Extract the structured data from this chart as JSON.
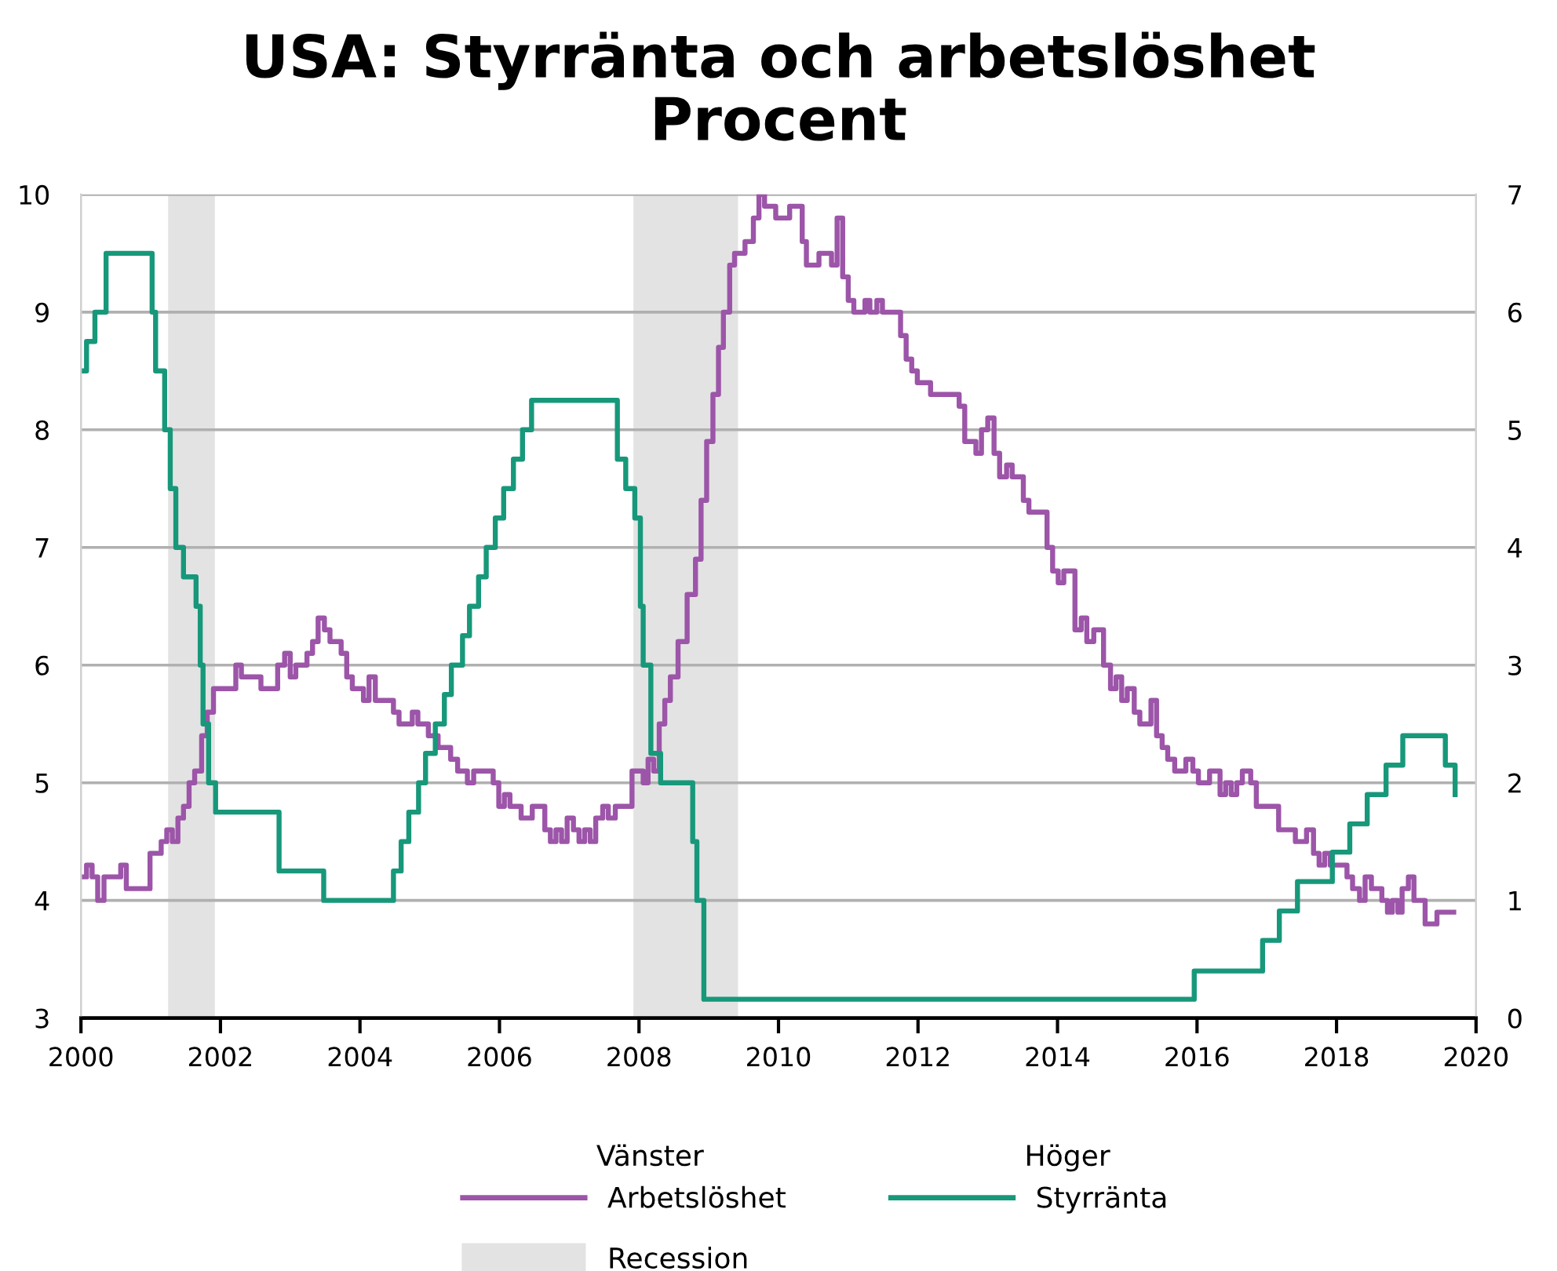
{
  "chart_data": {
    "type": "step",
    "title": "USA: Styrränta och arbetslöshet",
    "subtitle": "Procent",
    "xlim": [
      2000,
      2020
    ],
    "xticks": [
      2000,
      2002,
      2004,
      2006,
      2008,
      2010,
      2012,
      2014,
      2016,
      2018,
      2020
    ],
    "ylim": [
      3,
      10
    ],
    "yticks": [
      3,
      4,
      5,
      6,
      7,
      8,
      9,
      10
    ],
    "y2lim": [
      0,
      7
    ],
    "y2ticks": [
      0,
      1,
      2,
      3,
      4,
      5,
      6,
      7
    ],
    "grid": "y",
    "legend": "bottom",
    "annotations": [
      "Vänster",
      "Höger"
    ],
    "bands": [
      {
        "axis": "x",
        "from": 2001.25,
        "to": 2001.92,
        "label": "Recession",
        "color": "#e3e3e3"
      },
      {
        "axis": "x",
        "from": 2007.92,
        "to": 2009.42,
        "color": "#e3e3e3"
      }
    ],
    "series": [
      {
        "name": "Arbetslöshet",
        "color": "#9c55a8",
        "x": [
          2000.0,
          2000.08,
          2000.16,
          2000.24,
          2000.33,
          2000.57,
          2000.65,
          2000.99,
          2001.15,
          2001.23,
          2001.31,
          2001.39,
          2001.47,
          2001.55,
          2001.63,
          2001.73,
          2001.81,
          2001.9,
          2002.22,
          2002.3,
          2002.58,
          2002.82,
          2002.92,
          2003.0,
          2003.08,
          2003.24,
          2003.32,
          2003.4,
          2003.49,
          2003.57,
          2003.73,
          2003.81,
          2003.89,
          2004.05,
          2004.13,
          2004.22,
          2004.48,
          2004.56,
          2004.75,
          2004.83,
          2004.98,
          2005.12,
          2005.3,
          2005.4,
          2005.54,
          2005.63,
          2005.91,
          2005.99,
          2006.07,
          2006.15,
          2006.31,
          2006.47,
          2006.65,
          2006.73,
          2006.81,
          2006.89,
          2006.97,
          2007.06,
          2007.14,
          2007.22,
          2007.3,
          2007.38,
          2007.48,
          2007.56,
          2007.66,
          2007.9,
          2008.06,
          2008.13,
          2008.21,
          2008.29,
          2008.37,
          2008.45,
          2008.56,
          2008.69,
          2008.81,
          2008.89,
          2008.97,
          2009.06,
          2009.14,
          2009.21,
          2009.3,
          2009.37,
          2009.52,
          2009.64,
          2009.72,
          2009.8,
          2009.96,
          2010.16,
          2010.34,
          2010.4,
          2010.58,
          2010.76,
          2010.84,
          2010.92,
          2011.0,
          2011.08,
          2011.24,
          2011.31,
          2011.41,
          2011.49,
          2011.75,
          2011.83,
          2011.91,
          2011.99,
          2012.18,
          2012.59,
          2012.67,
          2012.83,
          2012.91,
          2013.0,
          2013.09,
          2013.17,
          2013.27,
          2013.35,
          2013.51,
          2013.59,
          2013.85,
          2013.93,
          2014.01,
          2014.09,
          2014.25,
          2014.34,
          2014.42,
          2014.52,
          2014.66,
          2014.76,
          2014.84,
          2014.92,
          2015.0,
          2015.1,
          2015.18,
          2015.34,
          2015.42,
          2015.5,
          2015.58,
          2015.68,
          2015.84,
          2015.94,
          2016.02,
          2016.18,
          2016.33,
          2016.41,
          2016.49,
          2016.57,
          2016.65,
          2016.77,
          2016.85,
          2017.17,
          2017.41,
          2017.57,
          2017.67,
          2017.75,
          2017.83,
          2017.91,
          2018.15,
          2018.23,
          2018.33,
          2018.41,
          2018.5,
          2018.65,
          2018.73,
          2018.8,
          2018.88,
          2018.94,
          2019.03,
          2019.11,
          2019.27,
          2019.44,
          2019.68
        ],
        "values": [
          4.2,
          4.3,
          4.2,
          4.0,
          4.2,
          4.3,
          4.1,
          4.4,
          4.5,
          4.6,
          4.5,
          4.7,
          4.8,
          5.0,
          5.1,
          5.4,
          5.6,
          5.8,
          6.0,
          5.9,
          5.8,
          6.0,
          6.1,
          5.9,
          6.0,
          6.1,
          6.2,
          6.4,
          6.3,
          6.2,
          6.1,
          5.9,
          5.8,
          5.7,
          5.9,
          5.7,
          5.6,
          5.5,
          5.6,
          5.5,
          5.4,
          5.3,
          5.2,
          5.1,
          5.0,
          5.1,
          5.0,
          4.8,
          4.9,
          4.8,
          4.7,
          4.8,
          4.6,
          4.5,
          4.6,
          4.5,
          4.7,
          4.6,
          4.5,
          4.6,
          4.5,
          4.7,
          4.8,
          4.7,
          4.8,
          5.1,
          5.0,
          5.2,
          5.1,
          5.5,
          5.7,
          5.9,
          6.2,
          6.6,
          6.9,
          7.4,
          7.9,
          8.3,
          8.7,
          9.0,
          9.4,
          9.5,
          9.6,
          9.8,
          10.0,
          9.9,
          9.8,
          9.9,
          9.6,
          9.4,
          9.5,
          9.4,
          9.8,
          9.3,
          9.1,
          9.0,
          9.1,
          9.0,
          9.1,
          9.0,
          8.8,
          8.6,
          8.5,
          8.4,
          8.3,
          8.2,
          7.9,
          7.8,
          8.0,
          8.1,
          7.8,
          7.6,
          7.7,
          7.6,
          7.4,
          7.3,
          7.0,
          6.8,
          6.7,
          6.8,
          6.3,
          6.4,
          6.2,
          6.3,
          6.0,
          5.8,
          5.9,
          5.7,
          5.8,
          5.6,
          5.5,
          5.7,
          5.4,
          5.3,
          5.2,
          5.1,
          5.2,
          5.1,
          5.0,
          5.1,
          4.9,
          5.0,
          4.9,
          5.0,
          5.1,
          5.0,
          4.8,
          4.6,
          4.5,
          4.6,
          4.4,
          4.3,
          4.4,
          4.3,
          4.2,
          4.1,
          4.0,
          4.2,
          4.1,
          4.0,
          3.9,
          4.0,
          3.9,
          4.1,
          4.2,
          4.0,
          3.8,
          3.9,
          3.9
        ]
      },
      {
        "name": "Styrränta",
        "color": "#17987a",
        "axis": "y2",
        "x": [
          2000.0,
          2000.08,
          2000.2,
          2000.36,
          2001.02,
          2001.07,
          2001.2,
          2001.28,
          2001.36,
          2001.47,
          2001.65,
          2001.71,
          2001.75,
          2001.83,
          2001.93,
          2002.84,
          2003.48,
          2004.48,
          2004.59,
          2004.7,
          2004.84,
          2004.94,
          2005.08,
          2005.21,
          2005.31,
          2005.47,
          2005.57,
          2005.7,
          2005.81,
          2005.94,
          2006.06,
          2006.2,
          2006.33,
          2006.46,
          2007.69,
          2007.81,
          2007.94,
          2008.02,
          2008.06,
          2008.17,
          2008.31,
          2008.77,
          2008.83,
          2008.93,
          2015.96,
          2016.94,
          2017.18,
          2017.44,
          2017.94,
          2018.19,
          2018.44,
          2018.71,
          2018.95,
          2019.56,
          2019.7
        ],
        "values": [
          5.5,
          5.75,
          6.0,
          6.5,
          6.0,
          5.5,
          5.0,
          4.5,
          4.0,
          3.75,
          3.5,
          3.0,
          2.5,
          2.0,
          1.75,
          1.25,
          1.0,
          1.25,
          1.5,
          1.75,
          2.0,
          2.25,
          2.5,
          2.75,
          3.0,
          3.25,
          3.5,
          3.75,
          4.0,
          4.25,
          4.5,
          4.75,
          5.0,
          5.25,
          4.75,
          4.5,
          4.25,
          3.5,
          3.0,
          2.25,
          2.0,
          1.5,
          1.0,
          0.16,
          0.4,
          0.66,
          0.91,
          1.16,
          1.41,
          1.65,
          1.9,
          2.15,
          2.4,
          2.15,
          1.9
        ]
      }
    ]
  }
}
